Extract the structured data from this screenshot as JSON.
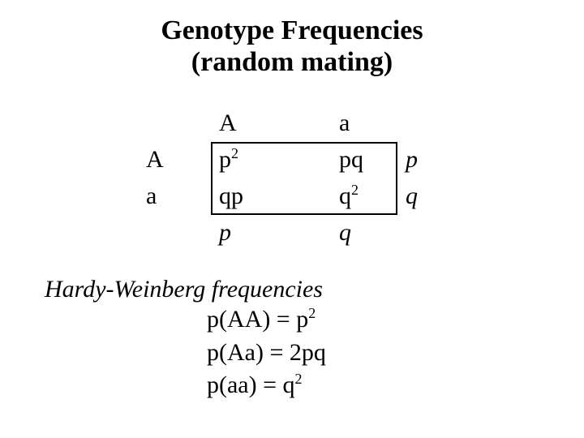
{
  "title": {
    "line1": "Genotype Frequencies",
    "line2": "(random mating)"
  },
  "punnett": {
    "col_allele_1": "A",
    "col_allele_2": "a",
    "row_allele_1": "A",
    "row_allele_2": "a",
    "cell_00_base": "p",
    "cell_00_sup": "2",
    "cell_01": "pq",
    "cell_10": "qp",
    "cell_11_base": "q",
    "cell_11_sup": "2",
    "margin_right_1": "p",
    "margin_right_2": "q",
    "margin_bottom_1": "p",
    "margin_bottom_2": "q",
    "box_border_color": "#000000",
    "box_border_width": 2
  },
  "hardy_weinberg": {
    "heading": "Hardy-Weinberg frequencies",
    "eq1_lhs": "p(AA) = ",
    "eq1_rhs_base": "p",
    "eq1_rhs_sup": "2",
    "eq2": "p(Aa) = 2pq",
    "eq3_lhs": "p(aa) = ",
    "eq3_rhs_base": "q",
    "eq3_rhs_sup": "2"
  },
  "style": {
    "background_color": "#ffffff",
    "text_color": "#000000",
    "font_family": "Times New Roman",
    "title_fontsize_pt": 26,
    "body_fontsize_pt": 22
  }
}
